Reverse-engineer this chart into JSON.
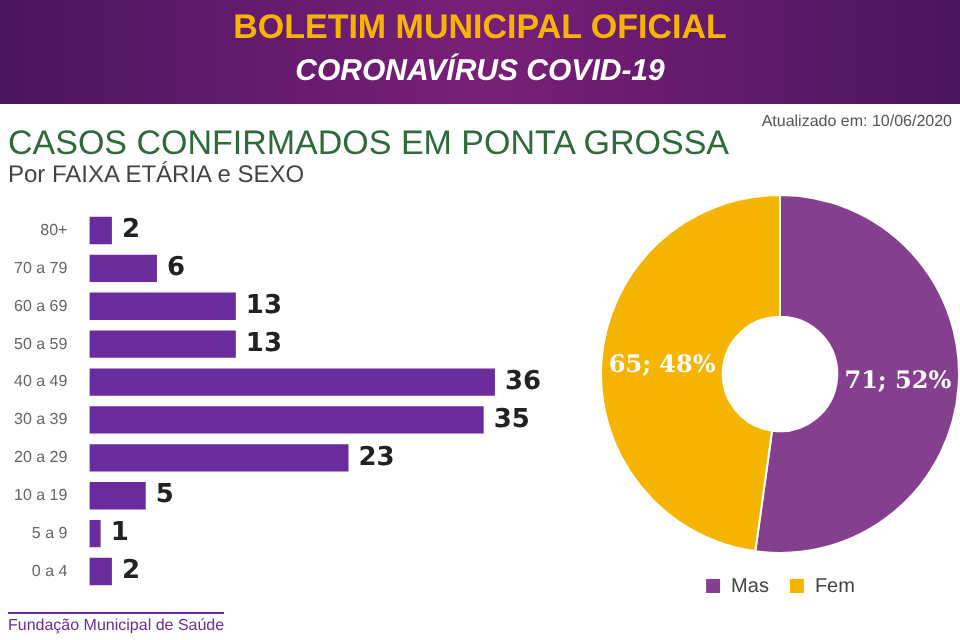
{
  "chart_data": [
    {
      "type": "bar",
      "title": "CASOS CONFIRMADOS EM PONTA GROSSA",
      "subtitle": "Por FAIXA ETÁRIA e SEXO",
      "annotations": [
        "BOLETIM MUNICIPAL OFICIAL",
        "CORONAVÍRUS COVID-19",
        "Atualizado em: 10/06/2020",
        "Fundação Municipal de Saúde"
      ],
      "orientation": "horizontal",
      "categories": [
        "80+",
        "70 a 79",
        "60 a 69",
        "50 a 59",
        "40 a 49",
        "30 a 39",
        "20 a 29",
        "10 a 19",
        "5 a 9",
        "0 a 4"
      ],
      "values": [
        2,
        6,
        13,
        13,
        36,
        35,
        23,
        5,
        1,
        2
      ],
      "color": "#6a2c9c",
      "data_labels": true
    },
    {
      "type": "donut",
      "categories": [
        "Mas",
        "Fem"
      ],
      "values": [
        71,
        65
      ],
      "colors": [
        "#843f8f",
        "#f5b400"
      ],
      "value_labels": [
        "71; 52%",
        "65; 48%"
      ],
      "legend": "bottom"
    }
  ]
}
